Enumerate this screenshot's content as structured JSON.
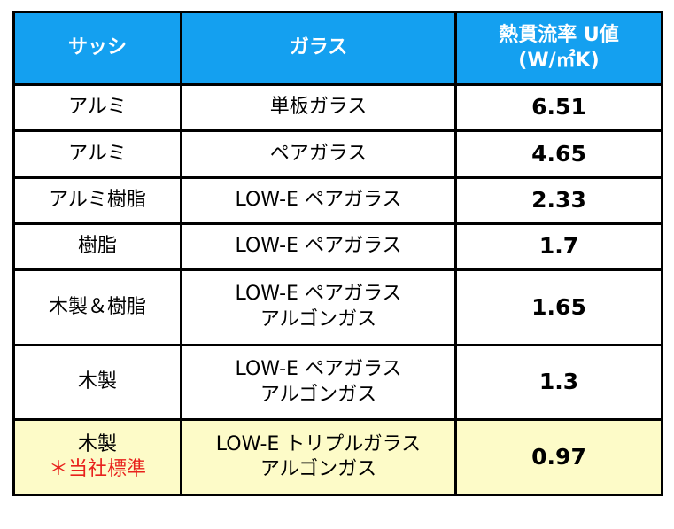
{
  "header": {
    "sash": "サッシ",
    "glass": "ガラス",
    "u_value_line1": "熱貫流率 U値",
    "u_value_line2": "(W/㎡K)"
  },
  "rows": [
    {
      "sash": [
        "アルミ"
      ],
      "glass": [
        "単板ガラス"
      ],
      "u_value": "6.51"
    },
    {
      "sash": [
        "アルミ"
      ],
      "glass": [
        "ペアガラス"
      ],
      "u_value": "4.65"
    },
    {
      "sash": [
        "アルミ樹脂"
      ],
      "glass": [
        "LOW-E ペアガラス"
      ],
      "u_value": "2.33"
    },
    {
      "sash": [
        "樹脂"
      ],
      "glass": [
        "LOW-E ペアガラス"
      ],
      "u_value": "1.7"
    },
    {
      "sash": [
        "木製＆樹脂"
      ],
      "glass": [
        "LOW-E ペアガラス",
        "アルゴンガス"
      ],
      "u_value": "1.65"
    },
    {
      "sash": [
        "木製"
      ],
      "glass": [
        "LOW-E ペアガラス",
        "アルゴンガス"
      ],
      "u_value": "1.3"
    },
    {
      "sash": [
        "木製",
        "＊当社標準"
      ],
      "glass": [
        "LOW-E トリプルガラス",
        "アルゴンガス"
      ],
      "u_value": "0.97"
    }
  ],
  "colors": {
    "header_bg": "#14a0f0",
    "highlight_bg": "#fdfbc8",
    "standard_note": "#e8211c"
  }
}
